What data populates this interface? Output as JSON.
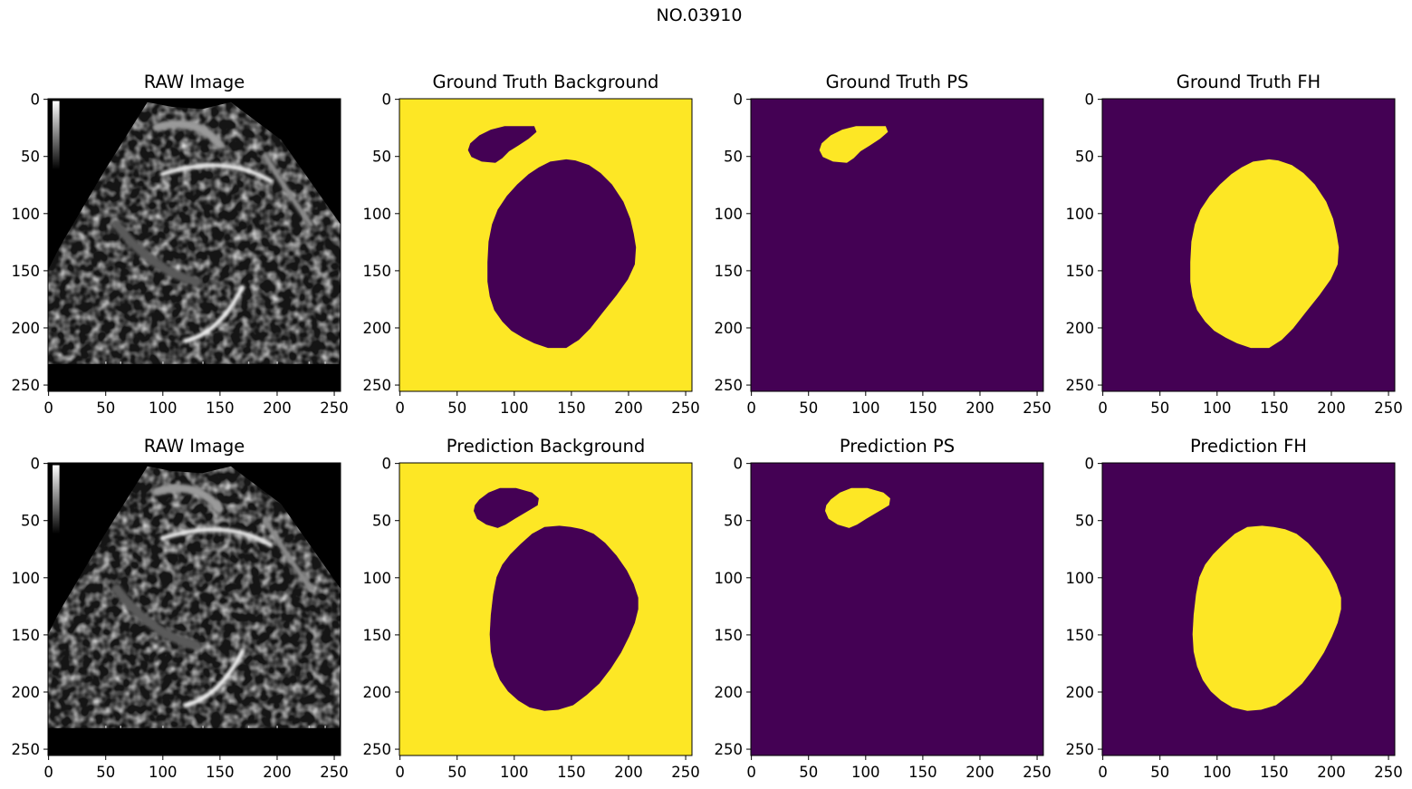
{
  "chart_data": {
    "type": "image-grid",
    "suptitle": "NO.03910",
    "layout": {
      "rows": 2,
      "cols": 4
    },
    "image_size": [
      256,
      256
    ],
    "x_ticks": [
      0,
      50,
      100,
      150,
      200,
      250
    ],
    "y_ticks": [
      0,
      50,
      100,
      150,
      200,
      250
    ],
    "colormaps": {
      "viridis_low": "#440154",
      "viridis_high": "#fde725",
      "gray_low": "#000000",
      "gray_high": "#ffffff"
    },
    "regions": {
      "gt_ps": [
        [
          60,
          45
        ],
        [
          62,
          39
        ],
        [
          70,
          32
        ],
        [
          80,
          27
        ],
        [
          92,
          24
        ],
        [
          118,
          24
        ],
        [
          120,
          29
        ],
        [
          113,
          35
        ],
        [
          104,
          41
        ],
        [
          96,
          46
        ],
        [
          90,
          52
        ],
        [
          84,
          56
        ],
        [
          72,
          55
        ],
        [
          63,
          51
        ]
      ],
      "gt_fh": [
        [
          132,
          55
        ],
        [
          146,
          53
        ],
        [
          154,
          54
        ],
        [
          166,
          58
        ],
        [
          176,
          65
        ],
        [
          186,
          75
        ],
        [
          196,
          90
        ],
        [
          202,
          105
        ],
        [
          205,
          118
        ],
        [
          207,
          130
        ],
        [
          206,
          145
        ],
        [
          200,
          158
        ],
        [
          190,
          172
        ],
        [
          178,
          187
        ],
        [
          167,
          201
        ],
        [
          157,
          211
        ],
        [
          146,
          218
        ],
        [
          130,
          218
        ],
        [
          118,
          214
        ],
        [
          108,
          209
        ],
        [
          98,
          203
        ],
        [
          90,
          195
        ],
        [
          83,
          185
        ],
        [
          79,
          173
        ],
        [
          77,
          160
        ],
        [
          77,
          143
        ],
        [
          78,
          125
        ],
        [
          81,
          110
        ],
        [
          86,
          97
        ],
        [
          94,
          85
        ],
        [
          103,
          75
        ],
        [
          113,
          66
        ],
        [
          122,
          60
        ]
      ],
      "pred_ps": [
        [
          65,
          42
        ],
        [
          66,
          37
        ],
        [
          70,
          32
        ],
        [
          78,
          26
        ],
        [
          88,
          22
        ],
        [
          102,
          22
        ],
        [
          116,
          26
        ],
        [
          122,
          31
        ],
        [
          121,
          37
        ],
        [
          111,
          43
        ],
        [
          101,
          49
        ],
        [
          93,
          54
        ],
        [
          86,
          57
        ],
        [
          76,
          54
        ],
        [
          68,
          49
        ]
      ],
      "pred_fh": [
        [
          127,
          56
        ],
        [
          140,
          55
        ],
        [
          150,
          56
        ],
        [
          160,
          58
        ],
        [
          170,
          62
        ],
        [
          180,
          70
        ],
        [
          190,
          81
        ],
        [
          199,
          94
        ],
        [
          205,
          106
        ],
        [
          209,
          118
        ],
        [
          209,
          128
        ],
        [
          206,
          140
        ],
        [
          201,
          152
        ],
        [
          194,
          166
        ],
        [
          185,
          180
        ],
        [
          175,
          193
        ],
        [
          164,
          203
        ],
        [
          152,
          212
        ],
        [
          139,
          216
        ],
        [
          127,
          217
        ],
        [
          114,
          214
        ],
        [
          104,
          208
        ],
        [
          95,
          200
        ],
        [
          88,
          190
        ],
        [
          83,
          178
        ],
        [
          80,
          165
        ],
        [
          79,
          150
        ],
        [
          80,
          133
        ],
        [
          82,
          115
        ],
        [
          85,
          100
        ],
        [
          90,
          89
        ],
        [
          97,
          80
        ],
        [
          106,
          71
        ],
        [
          116,
          62
        ]
      ]
    },
    "panels": [
      {
        "title": "RAW Image",
        "kind": "raw",
        "flip": false
      },
      {
        "title": "Ground Truth Background",
        "kind": "mask",
        "region": "gt",
        "invert": true
      },
      {
        "title": "Ground Truth PS",
        "kind": "mask",
        "region": "gt_ps",
        "invert": false
      },
      {
        "title": "Ground Truth FH",
        "kind": "mask",
        "region": "gt_fh",
        "invert": false
      },
      {
        "title": "RAW Image",
        "kind": "raw",
        "flip": true
      },
      {
        "title": "Prediction Background",
        "kind": "mask",
        "region": "pred",
        "invert": true
      },
      {
        "title": "Prediction PS",
        "kind": "mask",
        "region": "pred_ps",
        "invert": false
      },
      {
        "title": "Prediction FH",
        "kind": "mask",
        "region": "pred_fh",
        "invert": false
      }
    ]
  }
}
